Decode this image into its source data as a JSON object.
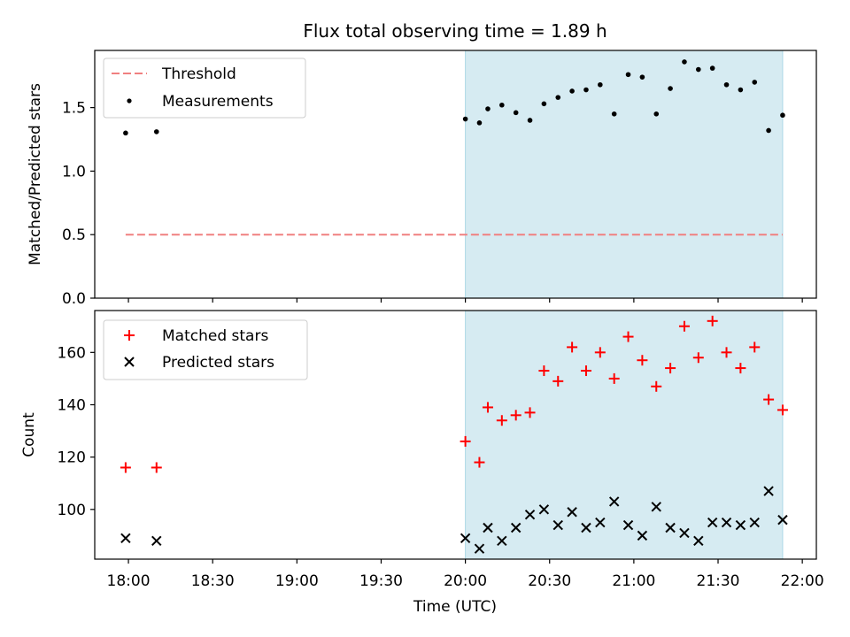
{
  "title": "Flux total observing time = 1.89 h",
  "chart_data": [
    {
      "type": "scatter",
      "panel": "top",
      "ylabel": "Matched/Predicted stars",
      "xlim": [
        "17:48",
        "22:05"
      ],
      "ylim": [
        0,
        1.95
      ],
      "yticks": [
        "0.0",
        "0.5",
        "1.0",
        "1.5"
      ],
      "shaded_span": [
        "20:00",
        "21:53"
      ],
      "legend_position": "top-left",
      "threshold": {
        "name": "Threshold",
        "x": [
          "17:59",
          "21:53"
        ],
        "y": 0.5,
        "color": "#f08080",
        "style": "dashed"
      },
      "series": [
        {
          "name": "Measurements",
          "marker": "dot",
          "color": "#000000",
          "x": [
            "17:59",
            "18:10",
            "20:00",
            "20:05",
            "20:08",
            "20:13",
            "20:18",
            "20:23",
            "20:28",
            "20:33",
            "20:38",
            "20:43",
            "20:48",
            "20:53",
            "20:58",
            "21:03",
            "21:08",
            "21:13",
            "21:18",
            "21:23",
            "21:28",
            "21:33",
            "21:38",
            "21:43",
            "21:48",
            "21:53"
          ],
          "y": [
            1.3,
            1.31,
            1.41,
            1.38,
            1.49,
            1.52,
            1.46,
            1.4,
            1.53,
            1.58,
            1.63,
            1.64,
            1.68,
            1.45,
            1.76,
            1.74,
            1.45,
            1.65,
            1.86,
            1.8,
            1.81,
            1.68,
            1.64,
            1.7,
            1.32,
            1.44
          ]
        }
      ]
    },
    {
      "type": "scatter",
      "panel": "bottom",
      "xlabel": "Time (UTC)",
      "ylabel": "Count",
      "xlim": [
        "17:48",
        "22:05"
      ],
      "ylim": [
        81,
        176
      ],
      "yticks": [
        "100",
        "120",
        "140",
        "160"
      ],
      "xticks": [
        "18:00",
        "18:30",
        "19:00",
        "19:30",
        "20:00",
        "20:30",
        "21:00",
        "21:30",
        "22:00"
      ],
      "shaded_span": [
        "20:00",
        "21:53"
      ],
      "legend_position": "top-left",
      "series": [
        {
          "name": "Matched stars",
          "marker": "plus",
          "color": "#ff0000",
          "x": [
            "17:59",
            "18:10",
            "20:00",
            "20:05",
            "20:08",
            "20:13",
            "20:18",
            "20:23",
            "20:28",
            "20:33",
            "20:38",
            "20:43",
            "20:48",
            "20:53",
            "20:58",
            "21:03",
            "21:08",
            "21:13",
            "21:18",
            "21:23",
            "21:28",
            "21:33",
            "21:38",
            "21:43",
            "21:48",
            "21:53"
          ],
          "y": [
            116,
            116,
            126,
            118,
            139,
            134,
            136,
            137,
            153,
            149,
            162,
            153,
            160,
            150,
            166,
            157,
            147,
            154,
            170,
            158,
            172,
            160,
            154,
            162,
            142,
            138
          ]
        },
        {
          "name": "Predicted stars",
          "marker": "x",
          "color": "#000000",
          "x": [
            "17:59",
            "18:10",
            "20:00",
            "20:05",
            "20:08",
            "20:13",
            "20:18",
            "20:23",
            "20:28",
            "20:33",
            "20:38",
            "20:43",
            "20:48",
            "20:53",
            "20:58",
            "21:03",
            "21:08",
            "21:13",
            "21:18",
            "21:23",
            "21:28",
            "21:33",
            "21:38",
            "21:43",
            "21:48",
            "21:53"
          ],
          "y": [
            89,
            88,
            89,
            85,
            93,
            88,
            93,
            98,
            100,
            94,
            99,
            93,
            95,
            103,
            94,
            90,
            101,
            93,
            91,
            88,
            95,
            95,
            94,
            95,
            107,
            96
          ]
        }
      ]
    }
  ]
}
